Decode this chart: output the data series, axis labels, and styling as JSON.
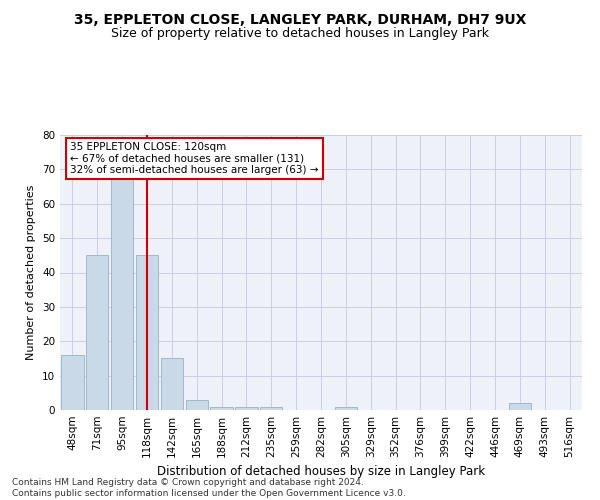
{
  "title": "35, EPPLETON CLOSE, LANGLEY PARK, DURHAM, DH7 9UX",
  "subtitle": "Size of property relative to detached houses in Langley Park",
  "xlabel": "Distribution of detached houses by size in Langley Park",
  "ylabel": "Number of detached properties",
  "bar_labels": [
    "48sqm",
    "71sqm",
    "95sqm",
    "118sqm",
    "142sqm",
    "165sqm",
    "188sqm",
    "212sqm",
    "235sqm",
    "259sqm",
    "282sqm",
    "305sqm",
    "329sqm",
    "352sqm",
    "376sqm",
    "399sqm",
    "422sqm",
    "446sqm",
    "469sqm",
    "493sqm",
    "516sqm"
  ],
  "bar_values": [
    16,
    45,
    68,
    45,
    15,
    3,
    1,
    1,
    1,
    0,
    0,
    1,
    0,
    0,
    0,
    0,
    0,
    0,
    2,
    0,
    0
  ],
  "bar_color": "#c9d9e8",
  "bar_edge_color": "#a0b8cc",
  "ylim": [
    0,
    80
  ],
  "yticks": [
    0,
    10,
    20,
    30,
    40,
    50,
    60,
    70,
    80
  ],
  "marker_bar_index": 3,
  "vline_color": "#cc0000",
  "annotation_line1": "35 EPPLETON CLOSE: 120sqm",
  "annotation_line2": "← 67% of detached houses are smaller (131)",
  "annotation_line3": "32% of semi-detached houses are larger (63) →",
  "annotation_box_color": "#ffffff",
  "annotation_box_edge": "#cc0000",
  "footer": "Contains HM Land Registry data © Crown copyright and database right 2024.\nContains public sector information licensed under the Open Government Licence v3.0.",
  "bg_color": "#eef2f8",
  "grid_color": "#c8d0e0",
  "title_fontsize": 10,
  "subtitle_fontsize": 9,
  "xlabel_fontsize": 8.5,
  "ylabel_fontsize": 8,
  "tick_fontsize": 7.5,
  "annotation_fontsize": 7.5,
  "footer_fontsize": 6.5
}
